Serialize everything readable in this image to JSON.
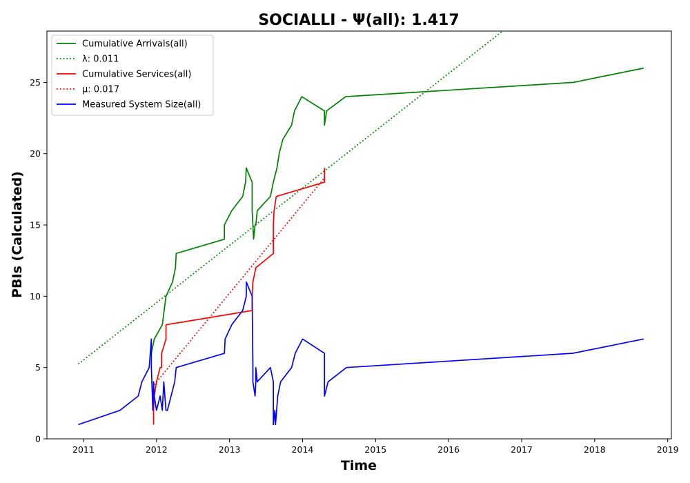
{
  "chart_data": {
    "type": "line",
    "title": "SOCIALLI -  Ψ(all): 1.417",
    "xlabel": "Time",
    "ylabel": "PBIs (Calculated)",
    "xlim": [
      2010.5,
      2019.05
    ],
    "ylim": [
      0,
      28.6
    ],
    "xticks": [
      2011,
      2012,
      2013,
      2014,
      2015,
      2016,
      2017,
      2018,
      2019
    ],
    "xtick_labels": [
      "2011",
      "2012",
      "2013",
      "2014",
      "2015",
      "2016",
      "2017",
      "2018",
      "2019"
    ],
    "yticks": [
      0,
      5,
      10,
      15,
      20,
      25
    ],
    "ytick_labels": [
      "0",
      "5",
      "10",
      "15",
      "20",
      "25"
    ],
    "grid": false,
    "legend_position": "top-left",
    "series": [
      {
        "name": "Cumulative Arrivals(all)",
        "color": "#008000",
        "style": "solid",
        "x": [
          2011.93,
          2011.97,
          2012.08,
          2012.13,
          2012.22,
          2012.26,
          2012.27,
          2012.93,
          2012.93,
          2013.03,
          2013.18,
          2013.22,
          2013.23,
          2013.31,
          2013.31,
          2013.33,
          2013.35,
          2013.36,
          2013.38,
          2013.56,
          2013.6,
          2013.65,
          2013.68,
          2013.73,
          2013.85,
          2013.89,
          2013.99,
          2014.3,
          2014.3,
          2014.33,
          2014.59,
          2017.71,
          2018.67
        ],
        "y": [
          6,
          7,
          8,
          10,
          11,
          12,
          13,
          14,
          15,
          16,
          17,
          18,
          19,
          18,
          16,
          14,
          15,
          15,
          16,
          17,
          18,
          19,
          20,
          21,
          22,
          23,
          24,
          23,
          22,
          23,
          24,
          25,
          26
        ]
      },
      {
        "name": "λ: 0.011",
        "color": "#008000",
        "style": "dotted",
        "x": [
          2010.93,
          2016.74
        ],
        "y": [
          5.25,
          28.6
        ]
      },
      {
        "name": "Cumulative Services(all)",
        "color": "#ff0000",
        "style": "solid",
        "x": [
          2011.96,
          2011.96,
          2011.97,
          2012.0,
          2012.05,
          2012.07,
          2012.07,
          2012.13,
          2012.13,
          2013.31,
          2013.31,
          2013.32,
          2013.36,
          2013.6,
          2013.6,
          2013.61,
          2013.64,
          2014.3,
          2014.3
        ],
        "y": [
          1,
          2,
          3,
          4,
          5,
          5,
          6,
          7,
          8,
          9,
          10,
          11,
          12,
          13,
          15,
          16,
          17,
          18,
          19
        ]
      },
      {
        "name": "μ: 0.017",
        "color": "#ff0000",
        "style": "dotted",
        "x": [
          2011.97,
          2014.3
        ],
        "y": [
          3.8,
          18.3
        ]
      },
      {
        "name": "Measured System Size(all)",
        "color": "#0000ff",
        "style": "solid",
        "x": [
          2010.93,
          2011.5,
          2011.75,
          2011.8,
          2011.9,
          2011.93,
          2011.93,
          2011.95,
          2011.96,
          2011.97,
          2012.0,
          2012.05,
          2012.08,
          2012.1,
          2012.13,
          2012.15,
          2012.2,
          2012.25,
          2012.27,
          2012.93,
          2012.94,
          2013.03,
          2013.18,
          2013.23,
          2013.23,
          2013.31,
          2013.32,
          2013.32,
          2013.35,
          2013.36,
          2013.36,
          2013.38,
          2013.56,
          2013.6,
          2013.6,
          2013.62,
          2013.63,
          2013.66,
          2013.7,
          2013.85,
          2013.9,
          2014.0,
          2014.3,
          2014.3,
          2014.35,
          2014.6,
          2017.7,
          2018.67
        ],
        "y": [
          1,
          2,
          3,
          4,
          5,
          7,
          5,
          2,
          4,
          3,
          2,
          3,
          2,
          4,
          2,
          2,
          3,
          4,
          5,
          6,
          7,
          8,
          9,
          10,
          11,
          10,
          5,
          4,
          3,
          4,
          5,
          4,
          5,
          4,
          1,
          2,
          1,
          3,
          4,
          5,
          6,
          7,
          6,
          3,
          4,
          5,
          6,
          7
        ]
      }
    ]
  }
}
